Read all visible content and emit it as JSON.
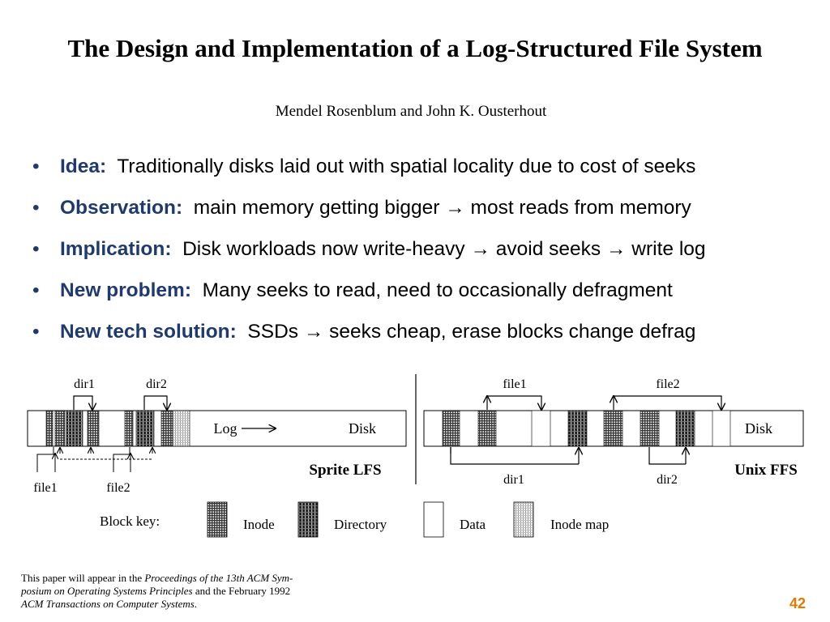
{
  "paper": {
    "title": "The Design and Implementation of a Log-Structured File System",
    "authors": "Mendel Rosenblum and John K. Ousterhout"
  },
  "bullets": [
    {
      "label": "Idea:",
      "text": "Traditionally disks laid out with spatial locality due to cost of seeks"
    },
    {
      "label": "Observation:",
      "text": "main memory getting bigger → most reads from memory"
    },
    {
      "label": "Implication:",
      "text": "Disk workloads now write-heavy → avoid seeks → write log"
    },
    {
      "label": "New problem:",
      "text": "Many seeks to read, need to occasionally defragment"
    },
    {
      "label": "New tech solution:",
      "text": "SSDs → seeks cheap, erase blocks change defrag"
    }
  ],
  "figure": {
    "lfs": {
      "name": "Sprite LFS",
      "log_label": "Log",
      "disk_label": "Disk",
      "labels": {
        "dir1": "dir1",
        "dir2": "dir2",
        "file1": "file1",
        "file2": "file2"
      }
    },
    "ffs": {
      "name": "Unix FFS",
      "disk_label": "Disk",
      "labels": {
        "file1": "file1",
        "file2": "file2",
        "dir1": "dir1",
        "dir2": "dir2"
      }
    },
    "key": {
      "title": "Block key:",
      "items": [
        "Inode",
        "Directory",
        "Data",
        "Inode map"
      ]
    }
  },
  "citation": {
    "line1": "This paper will appear in the ",
    "line1_italic": "Proceedings of the 13th ACM Sym-",
    "line2_italic": "posium on Operating Systems Principles",
    "line2": " and the February 1992",
    "line3_italic": "ACM Transactions on Computer Systems",
    "line3": "."
  },
  "slide_number": "42",
  "colors": {
    "accent": "#1f3a6f",
    "page_number": "#e07a00"
  }
}
